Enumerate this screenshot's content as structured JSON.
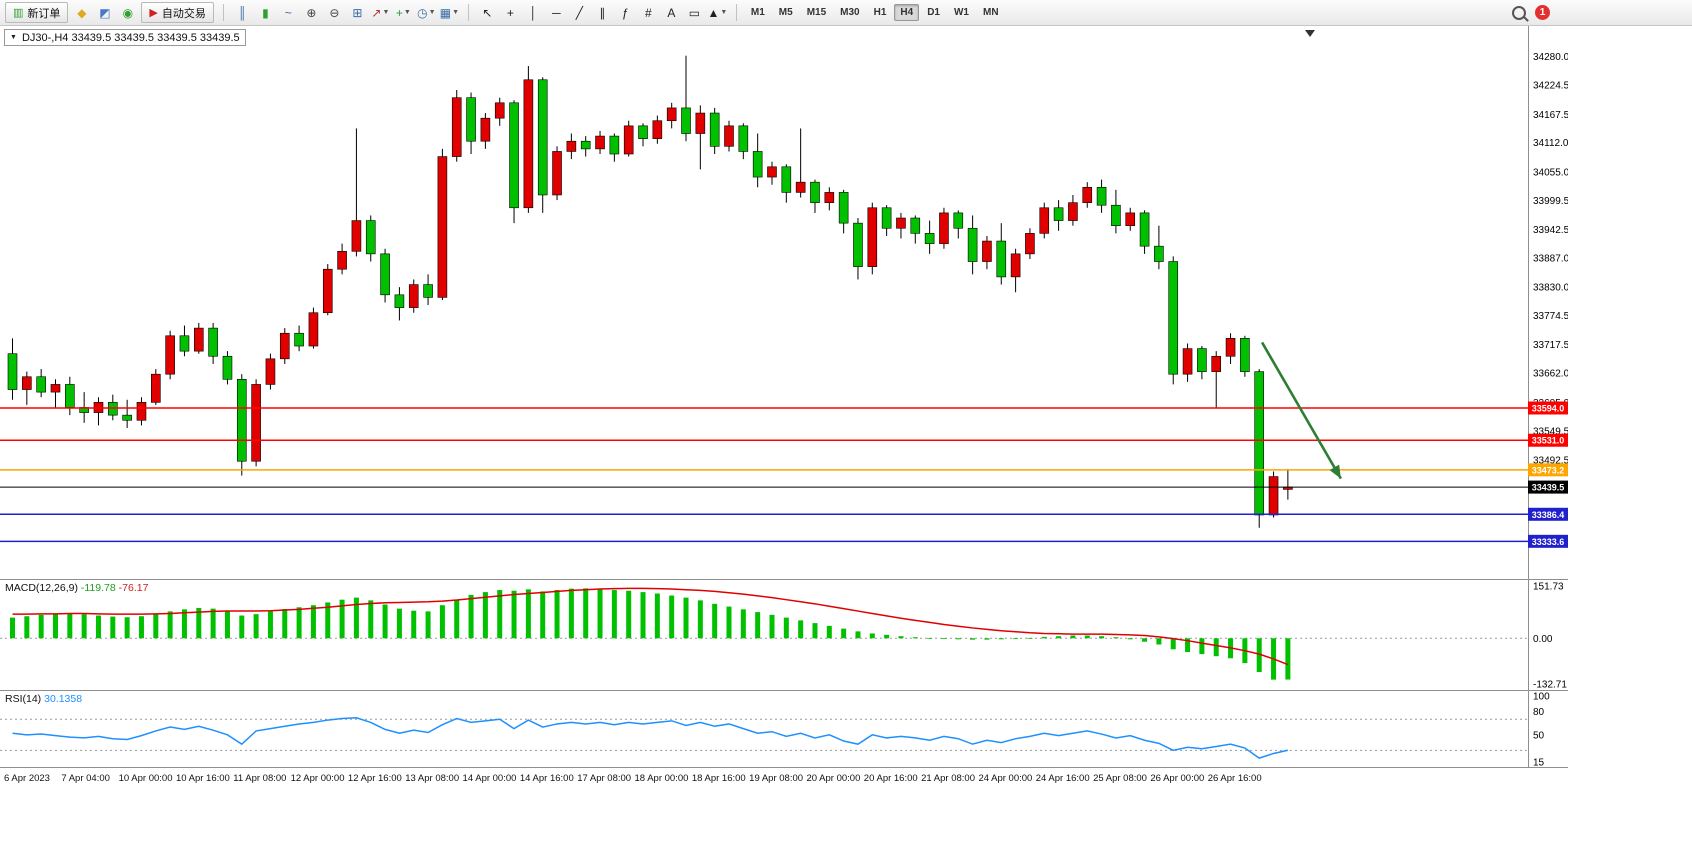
{
  "app": {
    "window_note": "MetaTrader chart workspace"
  },
  "toolbar": {
    "groups": [
      {
        "name": "trade",
        "items": [
          {
            "name": "new-order-button",
            "type": "button",
            "glyph": "▥",
            "glyph_color": "#2DA02D",
            "label": "新订单"
          },
          {
            "name": "mql-icon",
            "type": "icon",
            "glyph": "◆",
            "color": "#E0A91F"
          },
          {
            "name": "profiles-icon",
            "type": "icon",
            "glyph": "◩",
            "color": "#4A78C8"
          },
          {
            "name": "alerts-icon",
            "type": "icon",
            "glyph": "◉",
            "color": "#2DA02D"
          },
          {
            "name": "autotrade-button",
            "type": "button",
            "glyph": "▶",
            "glyph_color": "#D02020",
            "label": "自动交易"
          }
        ]
      },
      {
        "name": "chart-view",
        "items": [
          {
            "name": "bar-chart-icon",
            "type": "icon",
            "glyph": "║",
            "color": "#3A6EA5"
          },
          {
            "name": "candlestick-icon",
            "type": "icon",
            "glyph": "▮",
            "color": "#2DA02D"
          },
          {
            "name": "line-chart-icon",
            "type": "icon",
            "glyph": "~",
            "color": "#3A6EA5"
          },
          {
            "name": "zoom-in-icon",
            "type": "icon",
            "glyph": "⊕",
            "color": "#444444"
          },
          {
            "name": "zoom-out-icon",
            "type": "icon",
            "glyph": "⊖",
            "color": "#444444"
          },
          {
            "name": "tile-windows-icon",
            "type": "icon",
            "glyph": "⊞",
            "color": "#3A6EA5"
          },
          {
            "name": "indicators-icon",
            "type": "icon",
            "glyph": "↗",
            "color": "#B03030",
            "dropdown": true
          },
          {
            "name": "add-indicator-icon",
            "type": "icon",
            "glyph": "+",
            "color": "#2DA02D",
            "dropdown": true
          },
          {
            "name": "periods-icon",
            "type": "icon",
            "glyph": "◷",
            "color": "#3A6EA5",
            "dropdown": true
          },
          {
            "name": "templates-icon",
            "type": "icon",
            "glyph": "▦",
            "color": "#3A6EA5",
            "dropdown": true
          }
        ]
      },
      {
        "name": "drawing",
        "items": [
          {
            "name": "cursor-icon",
            "type": "icon",
            "glyph": "↖",
            "color": "#222222"
          },
          {
            "name": "crosshair-icon",
            "type": "icon",
            "glyph": "+",
            "color": "#222222"
          },
          {
            "name": "vertical-line-icon",
            "type": "icon",
            "glyph": "│",
            "color": "#222222"
          },
          {
            "name": "horizontal-line-icon",
            "type": "icon",
            "glyph": "─",
            "color": "#222222"
          },
          {
            "name": "trendline-icon",
            "type": "icon",
            "glyph": "╱",
            "color": "#222222"
          },
          {
            "name": "channel-icon",
            "type": "icon",
            "glyph": "∥",
            "color": "#222222"
          },
          {
            "name": "fibonacci-icon",
            "type": "icon",
            "glyph": "ƒ",
            "color": "#222222"
          },
          {
            "name": "grid-icon",
            "type": "icon",
            "glyph": "#",
            "color": "#222222"
          },
          {
            "name": "text-icon",
            "type": "icon",
            "glyph": "A",
            "color": "#222222"
          },
          {
            "name": "label-icon",
            "type": "icon",
            "glyph": "▭",
            "color": "#222222"
          },
          {
            "name": "shapes-icon",
            "type": "icon",
            "glyph": "▲",
            "color": "#222222",
            "dropdown": true
          }
        ]
      },
      {
        "name": "timeframes",
        "items": [
          {
            "name": "tf-m1",
            "type": "tf",
            "label": "M1"
          },
          {
            "name": "tf-m5",
            "type": "tf",
            "label": "M5"
          },
          {
            "name": "tf-m15",
            "type": "tf",
            "label": "M15"
          },
          {
            "name": "tf-m30",
            "type": "tf",
            "label": "M30"
          },
          {
            "name": "tf-h1",
            "type": "tf",
            "label": "H1"
          },
          {
            "name": "tf-h4",
            "type": "tf",
            "label": "H4",
            "active": true
          },
          {
            "name": "tf-d1",
            "type": "tf",
            "label": "D1"
          },
          {
            "name": "tf-w1",
            "type": "tf",
            "label": "W1"
          },
          {
            "name": "tf-mn",
            "type": "tf",
            "label": "MN"
          }
        ]
      }
    ],
    "right_items": [
      {
        "name": "search-icon",
        "type": "mag"
      },
      {
        "name": "notification-badge",
        "type": "badge",
        "label": "1"
      }
    ]
  },
  "chart": {
    "title": "DJ30-,H4 33439.5 33439.5 33439.5 33439.5",
    "symbol": "DJ30-",
    "timeframe": "H4"
  },
  "chart_data": [
    {
      "type": "candlestick",
      "name": "DJ30- H4 main chart",
      "up_color": "#E00000",
      "down_color": "#00C000",
      "y_domain": [
        33260,
        34340
      ],
      "y_ticks": [
        34280.0,
        34224.5,
        34167.5,
        34112.0,
        34055.0,
        33999.5,
        33942.5,
        33887.0,
        33830.0,
        33774.5,
        33717.5,
        33662.0,
        33605.0,
        33549.5,
        33492.5
      ],
      "x_labels": [
        "6 Apr 2023",
        "7 Apr 04:00",
        "10 Apr 00:00",
        "10 Apr 16:00",
        "11 Apr 08:00",
        "12 Apr 00:00",
        "12 Apr 16:00",
        "13 Apr 08:00",
        "14 Apr 00:00",
        "14 Apr 16:00",
        "17 Apr 08:00",
        "18 Apr 00:00",
        "18 Apr 16:00",
        "19 Apr 08:00",
        "20 Apr 00:00",
        "20 Apr 16:00",
        "21 Apr 08:00",
        "24 Apr 00:00",
        "24 Apr 16:00",
        "25 Apr 08:00",
        "26 Apr 00:00",
        "26 Apr 16:00"
      ],
      "last_price": 33439.5,
      "hlines": [
        {
          "price": 33594.0,
          "label": "33594.0",
          "color": "#FF0000",
          "name": "resistance-line-33594"
        },
        {
          "price": 33531.0,
          "label": "33531.0",
          "color": "#FF0000",
          "name": "resistance-line-33531"
        },
        {
          "price": 33473.2,
          "label": "33473.2",
          "color": "#FFA500",
          "name": "orange-level-line-33473"
        },
        {
          "price": 33439.5,
          "label": "33439.5",
          "color": "#000000",
          "name": "current-price-line"
        },
        {
          "price": 33386.4,
          "label": "33386.4",
          "color": "#2020CC",
          "name": "support-line-33386"
        },
        {
          "price": 33333.6,
          "label": "33333.6",
          "color": "#2020CC",
          "name": "support-line-33333"
        }
      ],
      "arrow": {
        "from_index": 87.2,
        "from_price": 33722,
        "to_index": 92.7,
        "to_price": 33456,
        "color": "#2E7D32"
      },
      "candles": [
        [
          33700,
          33730,
          33610,
          33630
        ],
        [
          33630,
          33665,
          33600,
          33655
        ],
        [
          33655,
          33670,
          33615,
          33625
        ],
        [
          33625,
          33650,
          33595,
          33640
        ],
        [
          33640,
          33655,
          33580,
          33595
        ],
        [
          33595,
          33625,
          33565,
          33585
        ],
        [
          33585,
          33615,
          33560,
          33605
        ],
        [
          33605,
          33620,
          33570,
          33580
        ],
        [
          33580,
          33610,
          33555,
          33570
        ],
        [
          33570,
          33615,
          33560,
          33605
        ],
        [
          33605,
          33670,
          33600,
          33660
        ],
        [
          33660,
          33745,
          33650,
          33735
        ],
        [
          33735,
          33755,
          33695,
          33705
        ],
        [
          33705,
          33760,
          33700,
          33750
        ],
        [
          33750,
          33760,
          33680,
          33695
        ],
        [
          33695,
          33705,
          33640,
          33650
        ],
        [
          33650,
          33660,
          33462,
          33490
        ],
        [
          33490,
          33650,
          33480,
          33640
        ],
        [
          33640,
          33700,
          33630,
          33690
        ],
        [
          33690,
          33750,
          33680,
          33740
        ],
        [
          33740,
          33755,
          33705,
          33715
        ],
        [
          33715,
          33790,
          33710,
          33780
        ],
        [
          33780,
          33875,
          33775,
          33865
        ],
        [
          33865,
          33915,
          33855,
          33900
        ],
        [
          33900,
          34140,
          33890,
          33960
        ],
        [
          33960,
          33970,
          33880,
          33895
        ],
        [
          33895,
          33905,
          33800,
          33815
        ],
        [
          33815,
          33830,
          33765,
          33790
        ],
        [
          33790,
          33845,
          33780,
          33835
        ],
        [
          33835,
          33855,
          33795,
          33810
        ],
        [
          33810,
          34100,
          33805,
          34085
        ],
        [
          34085,
          34215,
          34075,
          34200
        ],
        [
          34200,
          34210,
          34090,
          34115
        ],
        [
          34115,
          34170,
          34100,
          34160
        ],
        [
          34160,
          34200,
          34145,
          34190
        ],
        [
          34190,
          34195,
          33955,
          33985
        ],
        [
          33985,
          34262,
          33975,
          34235
        ],
        [
          34235,
          34240,
          33975,
          34010
        ],
        [
          34010,
          34105,
          34000,
          34095
        ],
        [
          34095,
          34130,
          34080,
          34115
        ],
        [
          34115,
          34125,
          34085,
          34100
        ],
        [
          34100,
          34135,
          34090,
          34125
        ],
        [
          34125,
          34130,
          34075,
          34090
        ],
        [
          34090,
          34155,
          34085,
          34145
        ],
        [
          34145,
          34150,
          34105,
          34120
        ],
        [
          34120,
          34165,
          34110,
          34155
        ],
        [
          34155,
          34190,
          34140,
          34180
        ],
        [
          34180,
          34282,
          34115,
          34130
        ],
        [
          34130,
          34185,
          34060,
          34170
        ],
        [
          34170,
          34180,
          34090,
          34105
        ],
        [
          34105,
          34155,
          34095,
          34145
        ],
        [
          34145,
          34150,
          34080,
          34095
        ],
        [
          34095,
          34130,
          34025,
          34045
        ],
        [
          34045,
          34075,
          34030,
          34065
        ],
        [
          34065,
          34070,
          33995,
          34015
        ],
        [
          34015,
          34140,
          34005,
          34035
        ],
        [
          34035,
          34040,
          33975,
          33995
        ],
        [
          33995,
          34025,
          33980,
          34015
        ],
        [
          34015,
          34020,
          33935,
          33955
        ],
        [
          33955,
          33965,
          33845,
          33870
        ],
        [
          33870,
          33995,
          33855,
          33985
        ],
        [
          33985,
          33990,
          33930,
          33945
        ],
        [
          33945,
          33975,
          33925,
          33965
        ],
        [
          33965,
          33970,
          33915,
          33935
        ],
        [
          33935,
          33960,
          33895,
          33915
        ],
        [
          33915,
          33985,
          33905,
          33975
        ],
        [
          33975,
          33980,
          33925,
          33945
        ],
        [
          33945,
          33970,
          33855,
          33880
        ],
        [
          33880,
          33930,
          33865,
          33920
        ],
        [
          33920,
          33955,
          33835,
          33850
        ],
        [
          33850,
          33905,
          33820,
          33895
        ],
        [
          33895,
          33945,
          33885,
          33935
        ],
        [
          33935,
          33995,
          33925,
          33985
        ],
        [
          33985,
          34000,
          33940,
          33960
        ],
        [
          33960,
          34010,
          33950,
          33995
        ],
        [
          33995,
          34035,
          33985,
          34025
        ],
        [
          34025,
          34040,
          33975,
          33990
        ],
        [
          33990,
          34020,
          33935,
          33950
        ],
        [
          33950,
          33985,
          33940,
          33975
        ],
        [
          33975,
          33980,
          33895,
          33910
        ],
        [
          33910,
          33950,
          33865,
          33880
        ],
        [
          33880,
          33890,
          33640,
          33660
        ],
        [
          33660,
          33720,
          33645,
          33710
        ],
        [
          33710,
          33715,
          33650,
          33665
        ],
        [
          33665,
          33705,
          33595,
          33695
        ],
        [
          33695,
          33740,
          33680,
          33730
        ],
        [
          33730,
          33735,
          33655,
          33665
        ],
        [
          33665,
          33670,
          33360,
          33385
        ],
        [
          33385,
          33470,
          33380,
          33460
        ],
        [
          33435,
          33475,
          33415,
          33439.5
        ]
      ]
    },
    {
      "type": "macd-histogram",
      "name": "MACD(12,26,9)",
      "value1": "-119.78",
      "value2": "-76.17",
      "hist_color": "#00C000",
      "signal_color": "#E00000",
      "y_domain": [
        151.73,
        -132.71
      ],
      "y_ticks": [
        151.73,
        0.0,
        -132.71
      ],
      "histogram": [
        60,
        64,
        68,
        70,
        72,
        70,
        66,
        63,
        61,
        64,
        70,
        78,
        84,
        88,
        86,
        80,
        66,
        70,
        78,
        85,
        90,
        96,
        104,
        112,
        118,
        110,
        98,
        86,
        80,
        78,
        96,
        112,
        126,
        134,
        140,
        138,
        142,
        136,
        140,
        144,
        145,
        143,
        140,
        138,
        134,
        130,
        124,
        118,
        110,
        100,
        92,
        84,
        76,
        68,
        60,
        52,
        44,
        36,
        28,
        20,
        14,
        10,
        6,
        3,
        1,
        -1,
        -3,
        -4,
        -4,
        -3,
        -1,
        1,
        4,
        6,
        8,
        8,
        6,
        3,
        -3,
        -10,
        -18,
        -32,
        -40,
        -46,
        -52,
        -58,
        -72,
        -98,
        -120,
        -119.78
      ],
      "signal": [
        70,
        70,
        71,
        71,
        72,
        72,
        71,
        70,
        70,
        70,
        71,
        72,
        74,
        76,
        78,
        79,
        79,
        79,
        80,
        82,
        84,
        87,
        90,
        94,
        98,
        101,
        103,
        104,
        105,
        106,
        108,
        111,
        115,
        119,
        123,
        127,
        130,
        133,
        136,
        139,
        141,
        143,
        144,
        145,
        145,
        144,
        143,
        141,
        139,
        136,
        132,
        128,
        123,
        118,
        112,
        106,
        100,
        93,
        86,
        79,
        72,
        65,
        58,
        52,
        46,
        40,
        35,
        30,
        26,
        22,
        19,
        16,
        14,
        13,
        12,
        12,
        12,
        11,
        10,
        8,
        4,
        -1,
        -7,
        -14,
        -21,
        -28,
        -36,
        -46,
        -60,
        -76.17
      ]
    },
    {
      "type": "rsi-line",
      "name": "RSI(14)",
      "value": "30.1358",
      "line_color": "#1E90FF",
      "y_domain": [
        15,
        100
      ],
      "y_ticks": [
        100,
        80,
        50,
        15
      ],
      "levels": [
        70,
        30
      ],
      "values": [
        52,
        50,
        51,
        49,
        47,
        46,
        48,
        45,
        44,
        49,
        55,
        60,
        57,
        61,
        56,
        50,
        38,
        55,
        58,
        61,
        64,
        66,
        69,
        71,
        72,
        66,
        57,
        52,
        56,
        53,
        63,
        71,
        66,
        68,
        70,
        58,
        69,
        60,
        64,
        66,
        64,
        66,
        63,
        66,
        64,
        66,
        68,
        62,
        66,
        61,
        64,
        58,
        52,
        54,
        48,
        52,
        46,
        50,
        42,
        38,
        50,
        46,
        48,
        46,
        43,
        48,
        45,
        38,
        43,
        40,
        45,
        48,
        52,
        49,
        52,
        55,
        51,
        46,
        49,
        43,
        39,
        30,
        34,
        32,
        35,
        38,
        33,
        20,
        26,
        30.1358
      ]
    }
  ]
}
